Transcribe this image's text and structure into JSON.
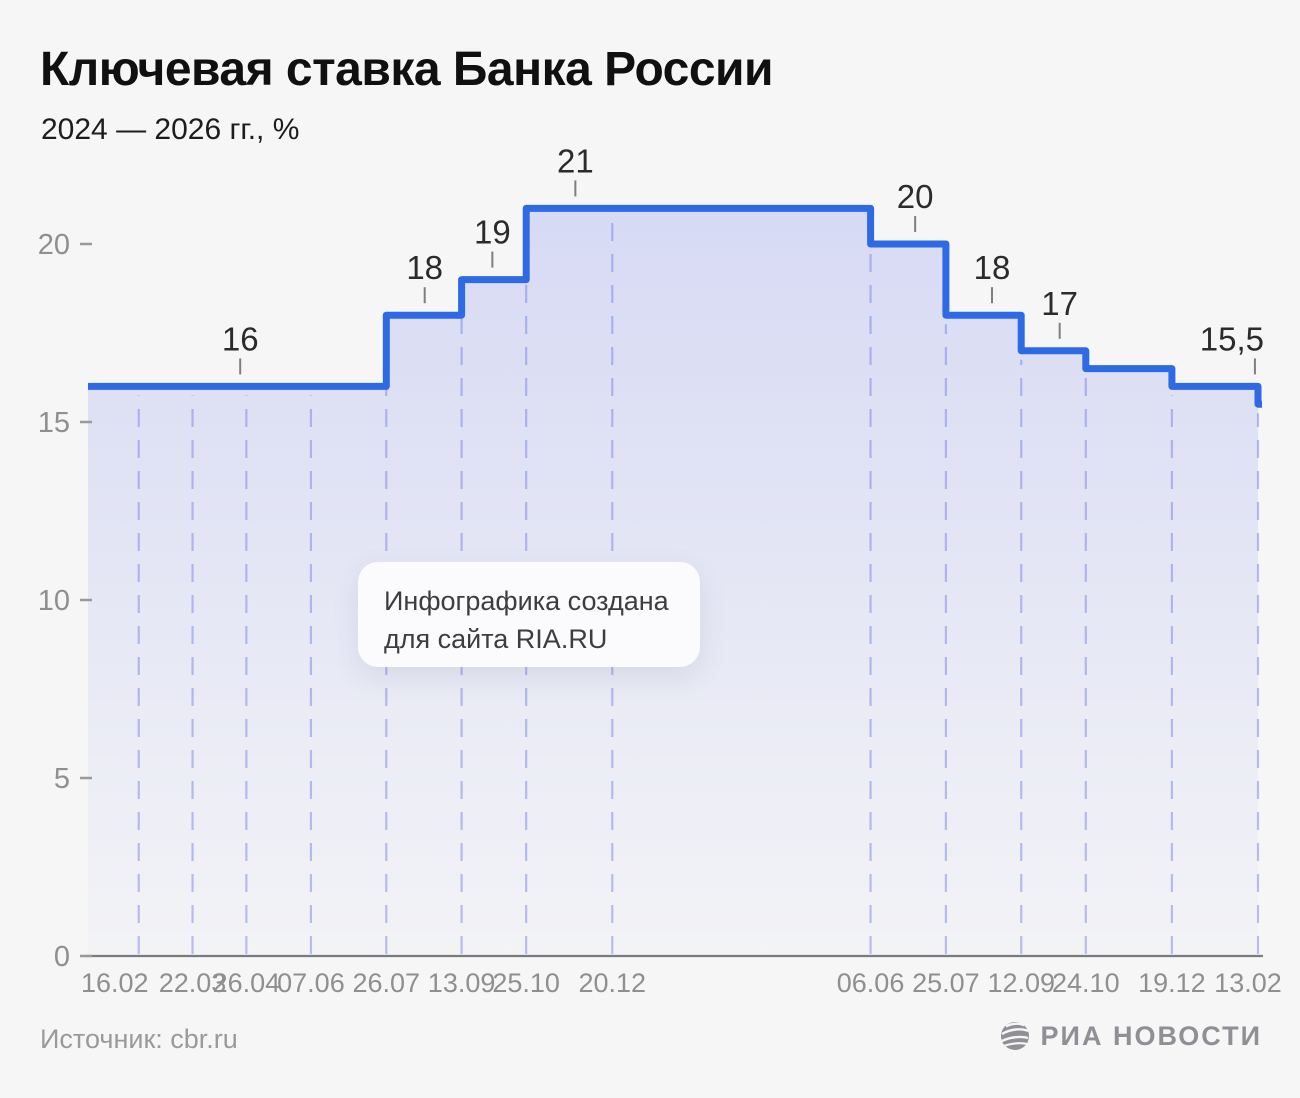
{
  "title": "Ключевая ставка Банка России",
  "subtitle": "2024 — 2026 гг., %",
  "watermark": {
    "line1": "Инфографика создана",
    "line2": "для сайта RIA.RU"
  },
  "source": "Источник: cbr.ru",
  "logo": {
    "icon": "ria-globe-icon",
    "text": "РИА НОВОСТИ"
  },
  "chart_data": {
    "type": "area",
    "subtype": "step-line-with-fill",
    "title": "Ключевая ставка Банка России",
    "unit": "%",
    "period": "2024 — 2026",
    "y_ticks": [
      0,
      5,
      10,
      15,
      20
    ],
    "ylim": [
      0,
      21.5
    ],
    "grid": "dashed-vertical-at-each-date",
    "legend": "none",
    "x_domain_days": [
      -33,
      728
    ],
    "points": [
      {
        "label": "16.02",
        "day": 0,
        "value": 16
      },
      {
        "label": "22.03",
        "day": 35,
        "value": 16
      },
      {
        "label": "26.04",
        "day": 70,
        "value": 16
      },
      {
        "label": "07.06",
        "day": 112,
        "value": 16
      },
      {
        "label": "26.07",
        "day": 161,
        "value": 18
      },
      {
        "label": "13.09",
        "day": 210,
        "value": 19
      },
      {
        "label": "25.10",
        "day": 252,
        "value": 21
      },
      {
        "label": "20.12",
        "day": 308,
        "value": 21
      },
      {
        "label": "06.06",
        "day": 476,
        "value": 20
      },
      {
        "label": "25.07",
        "day": 525,
        "value": 18
      },
      {
        "label": "12.09",
        "day": 574,
        "value": 17
      },
      {
        "label": "24.10",
        "day": 616,
        "value": 16.5
      },
      {
        "label": "19.12",
        "day": 672,
        "value": 16
      },
      {
        "label": "13.02",
        "day": 728,
        "value": 15.5
      }
    ],
    "annotations": [
      {
        "text": "16",
        "label_day": 66,
        "tick_day": 66,
        "ref_value": 16
      },
      {
        "text": "18",
        "label_day": 186,
        "tick_day": 186,
        "ref_value": 18
      },
      {
        "text": "19",
        "label_day": 230,
        "tick_day": 230,
        "ref_value": 19
      },
      {
        "text": "21",
        "label_day": 284,
        "tick_day": 284,
        "ref_value": 21
      },
      {
        "text": "20",
        "label_day": 505,
        "tick_day": 505,
        "ref_value": 20
      },
      {
        "text": "18",
        "label_day": 555,
        "tick_day": 555,
        "ref_value": 18
      },
      {
        "text": "17",
        "label_day": 599,
        "tick_day": 599,
        "ref_value": 17
      },
      {
        "text": "15,5",
        "label_day": 711,
        "tick_day": 726,
        "ref_value": 16
      }
    ],
    "colors": {
      "line": "#2e6ae3",
      "fill_top": "rgba(101,117,237,0.22)",
      "fill_bottom": "rgba(101,117,237,0.02)",
      "grid": "#b9bdee",
      "axis": "#7b7b7b",
      "tick_label": "#8f8f8f",
      "annotation": "#2b2b2b",
      "annotation_tick": "#7e7e7e",
      "background": "#f6f6f6"
    }
  }
}
